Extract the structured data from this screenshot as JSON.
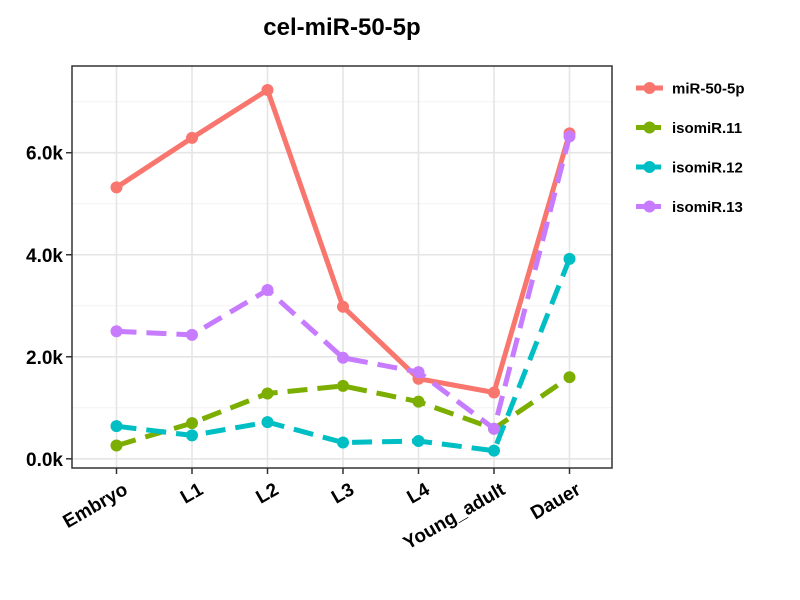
{
  "chart_data": {
    "type": "line",
    "title": "cel-miR-50-5p",
    "xlabel": "",
    "ylabel": "",
    "categories": [
      "Embryo",
      "L1",
      "L2",
      "L3",
      "L4",
      "Young_adult",
      "Dauer"
    ],
    "ylim": [
      -180,
      7700
    ],
    "yticks": [
      {
        "value": 0,
        "label": "0.0k"
      },
      {
        "value": 2000,
        "label": "2.0k"
      },
      {
        "value": 4000,
        "label": "4.0k"
      },
      {
        "value": 6000,
        "label": "6.0k"
      }
    ],
    "grid": true,
    "legend_position": "right",
    "series": [
      {
        "name": "miR-50-5p",
        "color": "#F8766D",
        "dash": "solid",
        "values": [
          5320,
          6290,
          7230,
          2980,
          1570,
          1300,
          6380
        ]
      },
      {
        "name": "isomiR.11",
        "color": "#7CAE00",
        "dash": "dashed",
        "values": [
          260,
          700,
          1280,
          1430,
          1120,
          590,
          1600
        ]
      },
      {
        "name": "isomiR.12",
        "color": "#00BFC4",
        "dash": "dashed",
        "values": [
          640,
          460,
          720,
          320,
          350,
          160,
          3920
        ]
      },
      {
        "name": "isomiR.13",
        "color": "#C77CFF",
        "dash": "dashed",
        "values": [
          2500,
          2430,
          3310,
          1980,
          1700,
          590,
          6320
        ]
      }
    ]
  }
}
